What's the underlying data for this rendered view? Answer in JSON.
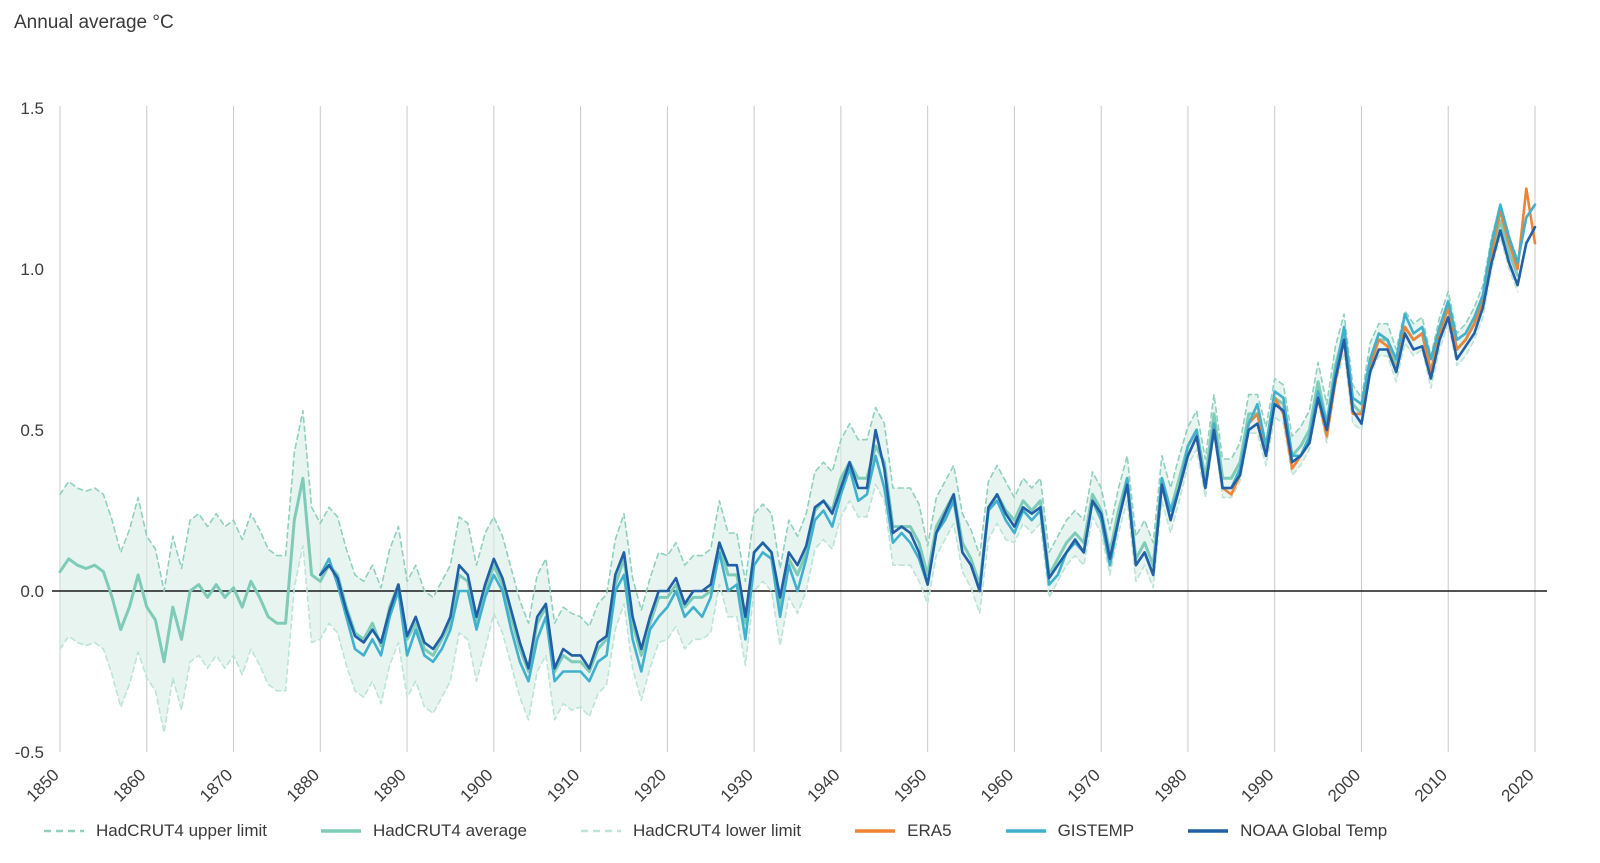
{
  "chart_data": {
    "type": "line",
    "title": "Annual average °C",
    "x_range": [
      1850,
      2020
    ],
    "y_range": [
      -0.5,
      1.5
    ],
    "x_ticks": [
      1850,
      1860,
      1870,
      1880,
      1890,
      1900,
      1910,
      1920,
      1930,
      1940,
      1950,
      1960,
      1970,
      1980,
      1990,
      2000,
      2010,
      2020
    ],
    "y_ticks": [
      -0.5,
      0.0,
      0.5,
      1.0,
      1.5
    ],
    "grid": "vertical-only",
    "legend_position": "bottom",
    "colors": {
      "band": "#d9eee6",
      "hadcrut4_upper": "#8fd0bf",
      "hadcrut4_avg": "#7ecbb8",
      "hadcrut4_lower": "#bce4d8",
      "era5": "#ee8434",
      "gistemp": "#41b0cd",
      "noaa": "#2160a6",
      "grid": "#c9c9c9",
      "zero_line": "#1a1a1a",
      "text": "#3d3d3d"
    },
    "legend": [
      {
        "label": "HadCRUT4 upper limit",
        "style": "dashed",
        "color": "#8fd0bf"
      },
      {
        "label": "HadCRUT4 average",
        "style": "solid",
        "color": "#7ecbb8"
      },
      {
        "label": "HadCRUT4 lower limit",
        "style": "dashed",
        "color": "#bce4d8"
      },
      {
        "label": "ERA5",
        "style": "solid",
        "color": "#ee8434"
      },
      {
        "label": "GISTEMP",
        "style": "solid",
        "color": "#41b0cd"
      },
      {
        "label": "NOAA Global Temp",
        "style": "solid",
        "color": "#2160a6"
      }
    ],
    "series": {
      "hadcrut4": {
        "name": "HadCRUT4 average",
        "start_year": 1850,
        "avg": [
          0.06,
          0.1,
          0.08,
          0.07,
          0.08,
          0.06,
          -0.02,
          -0.12,
          -0.05,
          0.05,
          -0.05,
          -0.09,
          -0.22,
          -0.05,
          -0.15,
          0.0,
          0.02,
          -0.02,
          0.02,
          -0.02,
          0.01,
          -0.05,
          0.03,
          -0.02,
          -0.08,
          -0.1,
          -0.1,
          0.22,
          0.35,
          0.05,
          0.03,
          0.08,
          0.05,
          -0.05,
          -0.13,
          -0.15,
          -0.1,
          -0.17,
          -0.05,
          0.02,
          -0.15,
          -0.1,
          -0.18,
          -0.2,
          -0.15,
          -0.1,
          0.05,
          0.03,
          -0.1,
          0.0,
          0.08,
          0.02,
          -0.08,
          -0.18,
          -0.25,
          -0.1,
          -0.05,
          -0.25,
          -0.2,
          -0.22,
          -0.22,
          -0.25,
          -0.18,
          -0.15,
          0.02,
          0.1,
          -0.1,
          -0.2,
          -0.1,
          -0.02,
          -0.02,
          0.02,
          -0.05,
          -0.02,
          -0.02,
          0.0,
          0.15,
          0.05,
          0.05,
          -0.1,
          0.12,
          0.15,
          0.12,
          -0.05,
          0.1,
          0.05,
          0.12,
          0.25,
          0.28,
          0.25,
          0.35,
          0.4,
          0.35,
          0.35,
          0.45,
          0.4,
          0.2,
          0.2,
          0.2,
          0.15,
          0.05,
          0.2,
          0.25,
          0.3,
          0.15,
          0.1,
          0.02,
          0.25,
          0.3,
          0.25,
          0.22,
          0.28,
          0.25,
          0.28,
          0.05,
          0.1,
          0.15,
          0.18,
          0.15,
          0.3,
          0.25,
          0.12,
          0.25,
          0.35,
          0.1,
          0.15,
          0.08,
          0.35,
          0.25,
          0.35,
          0.45,
          0.5,
          0.35,
          0.55,
          0.35,
          0.35,
          0.4,
          0.55,
          0.55,
          0.45,
          0.6,
          0.58,
          0.42,
          0.45,
          0.5,
          0.65,
          0.52,
          0.7,
          0.8,
          0.58,
          0.55,
          0.72,
          0.78,
          0.78,
          0.7,
          0.82,
          0.78,
          0.8,
          0.68,
          0.8,
          0.88,
          0.75,
          0.78,
          0.83,
          0.9,
          1.05,
          1.15,
          1.05,
          0.98
        ],
        "uncertainty": [
          0.24,
          0.24,
          0.24,
          0.24,
          0.24,
          0.24,
          0.24,
          0.24,
          0.24,
          0.24,
          0.22,
          0.22,
          0.22,
          0.22,
          0.22,
          0.22,
          0.22,
          0.22,
          0.22,
          0.22,
          0.21,
          0.21,
          0.21,
          0.21,
          0.21,
          0.21,
          0.21,
          0.21,
          0.21,
          0.21,
          0.18,
          0.18,
          0.18,
          0.18,
          0.18,
          0.18,
          0.18,
          0.18,
          0.18,
          0.18,
          0.18,
          0.18,
          0.18,
          0.18,
          0.18,
          0.18,
          0.18,
          0.18,
          0.18,
          0.18,
          0.15,
          0.15,
          0.15,
          0.15,
          0.15,
          0.15,
          0.15,
          0.15,
          0.15,
          0.15,
          0.14,
          0.14,
          0.14,
          0.14,
          0.14,
          0.14,
          0.14,
          0.14,
          0.14,
          0.14,
          0.13,
          0.13,
          0.13,
          0.13,
          0.13,
          0.13,
          0.13,
          0.13,
          0.13,
          0.13,
          0.12,
          0.12,
          0.12,
          0.12,
          0.12,
          0.12,
          0.12,
          0.12,
          0.12,
          0.12,
          0.12,
          0.12,
          0.12,
          0.12,
          0.12,
          0.12,
          0.12,
          0.12,
          0.12,
          0.12,
          0.09,
          0.09,
          0.09,
          0.09,
          0.09,
          0.09,
          0.09,
          0.09,
          0.09,
          0.09,
          0.07,
          0.07,
          0.07,
          0.07,
          0.07,
          0.07,
          0.07,
          0.07,
          0.07,
          0.07,
          0.07,
          0.07,
          0.07,
          0.07,
          0.07,
          0.07,
          0.07,
          0.07,
          0.07,
          0.07,
          0.06,
          0.06,
          0.06,
          0.06,
          0.06,
          0.06,
          0.06,
          0.06,
          0.06,
          0.06,
          0.06,
          0.06,
          0.06,
          0.06,
          0.06,
          0.06,
          0.06,
          0.06,
          0.06,
          0.06,
          0.05,
          0.05,
          0.05,
          0.05,
          0.05,
          0.05,
          0.05,
          0.05,
          0.05,
          0.05,
          0.05,
          0.05,
          0.05,
          0.05,
          0.05,
          0.05,
          0.05,
          0.05,
          0.05
        ]
      },
      "gistemp": {
        "name": "GISTEMP",
        "start_year": 1880,
        "values": [
          0.05,
          0.1,
          0.02,
          -0.08,
          -0.18,
          -0.2,
          -0.15,
          -0.2,
          -0.08,
          0.0,
          -0.2,
          -0.12,
          -0.2,
          -0.22,
          -0.18,
          -0.12,
          0.0,
          0.0,
          -0.12,
          -0.02,
          0.05,
          0.0,
          -0.12,
          -0.22,
          -0.28,
          -0.15,
          -0.08,
          -0.28,
          -0.25,
          -0.25,
          -0.25,
          -0.28,
          -0.22,
          -0.2,
          0.0,
          0.05,
          -0.15,
          -0.25,
          -0.12,
          -0.08,
          -0.05,
          0.0,
          -0.08,
          -0.05,
          -0.08,
          -0.02,
          0.12,
          0.0,
          0.02,
          -0.15,
          0.08,
          0.12,
          0.1,
          -0.08,
          0.08,
          0.0,
          0.1,
          0.22,
          0.25,
          0.2,
          0.3,
          0.38,
          0.28,
          0.3,
          0.42,
          0.32,
          0.15,
          0.18,
          0.15,
          0.1,
          0.02,
          0.18,
          0.22,
          0.28,
          0.12,
          0.08,
          0.0,
          0.25,
          0.28,
          0.22,
          0.18,
          0.25,
          0.22,
          0.25,
          0.02,
          0.05,
          0.12,
          0.15,
          0.12,
          0.28,
          0.22,
          0.08,
          0.22,
          0.35,
          0.08,
          0.12,
          0.05,
          0.35,
          0.25,
          0.32,
          0.45,
          0.5,
          0.32,
          0.52,
          0.32,
          0.32,
          0.38,
          0.52,
          0.58,
          0.45,
          0.62,
          0.6,
          0.42,
          0.42,
          0.48,
          0.62,
          0.52,
          0.68,
          0.82,
          0.6,
          0.58,
          0.72,
          0.8,
          0.78,
          0.72,
          0.86,
          0.8,
          0.82,
          0.72,
          0.82,
          0.9,
          0.78,
          0.8,
          0.85,
          0.92,
          1.08,
          1.2,
          1.1,
          1.02,
          1.16,
          1.2
        ]
      },
      "noaa": {
        "name": "NOAA Global Temp",
        "start_year": 1880,
        "values": [
          0.05,
          0.08,
          0.04,
          -0.06,
          -0.14,
          -0.16,
          -0.12,
          -0.16,
          -0.06,
          0.02,
          -0.14,
          -0.08,
          -0.16,
          -0.18,
          -0.14,
          -0.08,
          0.08,
          0.05,
          -0.08,
          0.02,
          0.1,
          0.04,
          -0.06,
          -0.16,
          -0.24,
          -0.08,
          -0.04,
          -0.24,
          -0.18,
          -0.2,
          -0.2,
          -0.24,
          -0.16,
          -0.14,
          0.05,
          0.12,
          -0.08,
          -0.18,
          -0.08,
          0.0,
          0.0,
          0.04,
          -0.04,
          0.0,
          0.0,
          0.02,
          0.15,
          0.08,
          0.08,
          -0.08,
          0.12,
          0.15,
          0.12,
          -0.02,
          0.12,
          0.08,
          0.14,
          0.26,
          0.28,
          0.24,
          0.32,
          0.4,
          0.32,
          0.32,
          0.5,
          0.38,
          0.18,
          0.2,
          0.18,
          0.12,
          0.02,
          0.18,
          0.24,
          0.3,
          0.12,
          0.08,
          0.0,
          0.26,
          0.3,
          0.24,
          0.2,
          0.26,
          0.24,
          0.26,
          0.04,
          0.08,
          0.12,
          0.16,
          0.12,
          0.28,
          0.24,
          0.1,
          0.22,
          0.33,
          0.08,
          0.12,
          0.05,
          0.33,
          0.22,
          0.32,
          0.42,
          0.48,
          0.32,
          0.5,
          0.32,
          0.32,
          0.36,
          0.5,
          0.52,
          0.42,
          0.58,
          0.56,
          0.4,
          0.42,
          0.46,
          0.6,
          0.5,
          0.66,
          0.78,
          0.56,
          0.52,
          0.68,
          0.75,
          0.75,
          0.68,
          0.8,
          0.75,
          0.76,
          0.66,
          0.78,
          0.85,
          0.72,
          0.76,
          0.8,
          0.88,
          1.02,
          1.12,
          1.02,
          0.95,
          1.08,
          1.13
        ]
      },
      "era5": {
        "name": "ERA5",
        "start_year": 1979,
        "values": [
          0.32,
          0.42,
          0.48,
          0.32,
          0.52,
          0.32,
          0.3,
          0.36,
          0.52,
          0.55,
          0.42,
          0.6,
          0.55,
          0.38,
          0.42,
          0.46,
          0.6,
          0.48,
          0.65,
          0.78,
          0.55,
          0.55,
          0.7,
          0.78,
          0.76,
          0.68,
          0.82,
          0.78,
          0.8,
          0.68,
          0.8,
          0.88,
          0.75,
          0.78,
          0.83,
          0.9,
          1.05,
          1.18,
          1.08,
          1.0,
          1.25,
          1.08
        ]
      }
    }
  }
}
